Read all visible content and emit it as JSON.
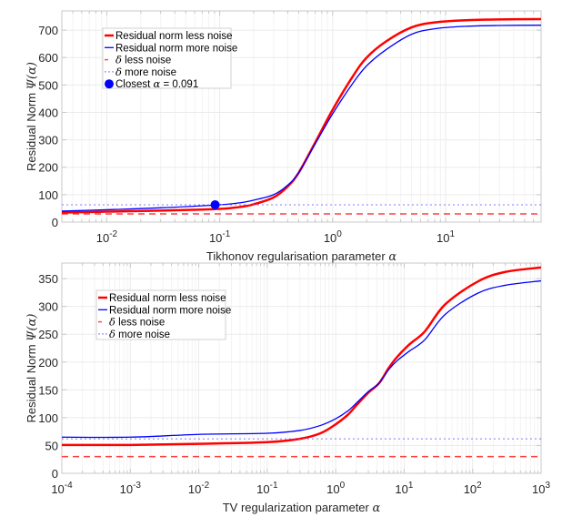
{
  "chart_data": [
    {
      "type": "line",
      "xscale": "log",
      "xlabel": "Tikhonov regularisation parameter",
      "xlabel_symbol": "α",
      "ylabel": "Residual Norm",
      "ylabel_symbol": "Ψ(α)",
      "xlim": [
        0.004,
        70
      ],
      "ylim": [
        0,
        770
      ],
      "xticks": [
        0.01,
        0.1,
        1,
        10
      ],
      "xtick_labels": [
        {
          "base": "10",
          "exp": "-2"
        },
        {
          "base": "10",
          "exp": "-1"
        },
        {
          "base": "10",
          "exp": "0"
        },
        {
          "base": "10",
          "exp": "1"
        }
      ],
      "yticks": [
        0,
        100,
        200,
        300,
        400,
        500,
        600,
        700
      ],
      "ytick_labels": [
        "0",
        "100",
        "200",
        "300",
        "400",
        "500",
        "600",
        "700"
      ],
      "grid": true,
      "legend_position": "top-left",
      "series": [
        {
          "name": "Residual norm less noise",
          "color": "#ff0000",
          "style": "solid",
          "width": "thick",
          "x": [
            0.004,
            0.01,
            0.03,
            0.06,
            0.1,
            0.15,
            0.2,
            0.3,
            0.4,
            0.5,
            0.7,
            1.0,
            1.5,
            2,
            3,
            5,
            8,
            15,
            30,
            70
          ],
          "y": [
            35,
            38,
            42,
            45,
            48,
            55,
            65,
            90,
            130,
            180,
            290,
            410,
            530,
            600,
            660,
            710,
            728,
            736,
            739,
            740
          ]
        },
        {
          "name": "Residual norm more noise",
          "color": "#0000ff",
          "style": "solid",
          "width": "thin",
          "x": [
            0.004,
            0.01,
            0.03,
            0.06,
            0.1,
            0.15,
            0.2,
            0.3,
            0.4,
            0.5,
            0.7,
            1.0,
            1.5,
            2,
            3,
            5,
            8,
            15,
            30,
            70
          ],
          "y": [
            40,
            45,
            52,
            58,
            63,
            70,
            80,
            100,
            135,
            180,
            285,
            395,
            505,
            570,
            630,
            685,
            705,
            714,
            717,
            718
          ]
        },
        {
          "name": "δ less noise",
          "color": "#ff0000",
          "style": "dashed",
          "constant": 30
        },
        {
          "name": "δ more noise",
          "color": "#6666ff",
          "style": "dotted",
          "constant": 63
        }
      ],
      "marker": {
        "name": "Closest α = 0.091",
        "label_prefix": "Closest",
        "label_symbol": "α",
        "label_value": "= 0.091",
        "x": 0.091,
        "y": 63,
        "color": "#0000ff"
      }
    },
    {
      "type": "line",
      "xscale": "log",
      "xlabel": "TV regularization parameter",
      "xlabel_symbol": "α",
      "ylabel": "Residual Norm",
      "ylabel_symbol": "Ψ(α)",
      "xlim": [
        0.0001,
        1000
      ],
      "ylim": [
        0,
        378
      ],
      "xticks": [
        0.0001,
        0.001,
        0.01,
        0.1,
        1,
        10,
        100,
        1000
      ],
      "xtick_labels": [
        {
          "base": "10",
          "exp": "-4"
        },
        {
          "base": "10",
          "exp": "-3"
        },
        {
          "base": "10",
          "exp": "-2"
        },
        {
          "base": "10",
          "exp": "-1"
        },
        {
          "base": "10",
          "exp": "0"
        },
        {
          "base": "10",
          "exp": "1"
        },
        {
          "base": "10",
          "exp": "2"
        },
        {
          "base": "10",
          "exp": "3"
        }
      ],
      "yticks": [
        0,
        50,
        100,
        150,
        200,
        250,
        300,
        350
      ],
      "ytick_labels": [
        "0",
        "50",
        "100",
        "150",
        "200",
        "250",
        "300",
        "350"
      ],
      "grid": true,
      "legend_position": "top-left",
      "series": [
        {
          "name": "Residual norm less noise",
          "color": "#ff0000",
          "style": "solid",
          "width": "thick",
          "x": [
            0.0001,
            0.001,
            0.01,
            0.1,
            0.3,
            0.6,
            1,
            1.5,
            2,
            3,
            4.3,
            6,
            8,
            12,
            20,
            40,
            120,
            300,
            1000
          ],
          "y": [
            51,
            51,
            53,
            56,
            62,
            72,
            88,
            105,
            122,
            145,
            162,
            190,
            210,
            232,
            255,
            304,
            345,
            362,
            370
          ]
        },
        {
          "name": "Residual norm more noise",
          "color": "#0000ff",
          "style": "solid",
          "width": "thin",
          "x": [
            0.0001,
            0.001,
            0.01,
            0.1,
            0.3,
            0.6,
            1,
            1.5,
            2,
            3,
            4.3,
            6,
            8,
            12,
            20,
            40,
            120,
            300,
            1000
          ],
          "y": [
            65,
            65,
            70,
            72,
            77,
            86,
            98,
            112,
            126,
            147,
            162,
            187,
            203,
            220,
            240,
            286,
            324,
            338,
            346
          ]
        },
        {
          "name": "δ less noise",
          "color": "#ff0000",
          "style": "dashed",
          "constant": 30
        },
        {
          "name": "δ more noise",
          "color": "#6666ff",
          "style": "dotted",
          "constant": 62
        }
      ]
    }
  ]
}
